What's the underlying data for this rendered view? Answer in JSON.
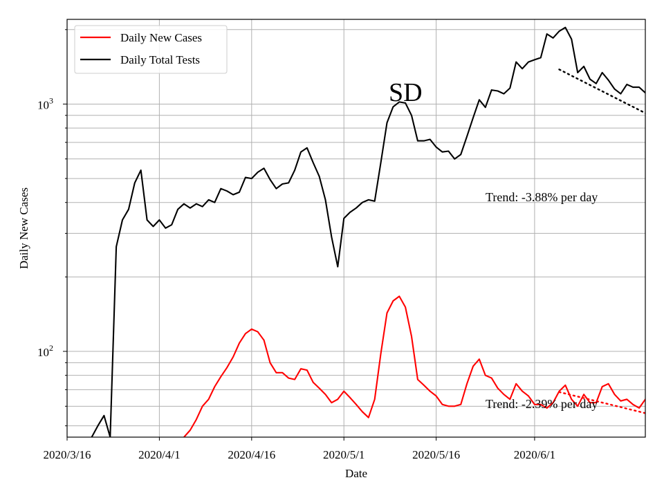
{
  "chart_data": {
    "type": "line",
    "yscale": "log",
    "ylabel": "Daily New Cases",
    "xlabel": "Date",
    "x_start": "2020/3/16",
    "xlim_days": [
      0,
      94
    ],
    "ylim": [
      45,
      2200
    ],
    "x_ticks": [
      {
        "day": 0,
        "label": "2020/3/16"
      },
      {
        "day": 15,
        "label": "2020/4/1"
      },
      {
        "day": 30,
        "label": "2020/4/16"
      },
      {
        "day": 45,
        "label": "2020/5/1"
      },
      {
        "day": 60,
        "label": "2020/5/16"
      },
      {
        "day": 76,
        "label": "2020/6/1"
      }
    ],
    "y_ticks": [
      {
        "value": 100,
        "base": "10",
        "exp": "2"
      },
      {
        "value": 1000,
        "base": "10",
        "exp": "3"
      }
    ],
    "minor_y_ticks": [
      50,
      60,
      70,
      80,
      90,
      200,
      300,
      400,
      500,
      600,
      700,
      800,
      900,
      2000
    ],
    "legend": {
      "position": "top-left",
      "entries": [
        "Daily New Cases",
        "Daily Total Tests"
      ]
    },
    "series": [
      {
        "name": "Daily New Cases",
        "color": "#ff0000",
        "style": "solid",
        "points": [
          [
            19,
            45
          ],
          [
            20,
            48
          ],
          [
            21,
            53
          ],
          [
            22,
            60
          ],
          [
            23,
            64
          ],
          [
            24,
            72
          ],
          [
            25,
            79
          ],
          [
            26,
            86
          ],
          [
            27,
            95
          ],
          [
            28,
            108
          ],
          [
            29,
            118
          ],
          [
            30,
            123
          ],
          [
            31,
            120
          ],
          [
            32,
            111
          ],
          [
            33,
            90
          ],
          [
            34,
            82
          ],
          [
            35,
            82
          ],
          [
            36,
            78
          ],
          [
            37,
            77
          ],
          [
            38,
            85
          ],
          [
            39,
            84
          ],
          [
            40,
            75
          ],
          [
            41,
            71
          ],
          [
            42,
            67
          ],
          [
            43,
            62
          ],
          [
            44,
            64
          ],
          [
            45,
            69
          ],
          [
            46,
            65
          ],
          [
            47,
            61
          ],
          [
            48,
            57
          ],
          [
            49,
            54
          ],
          [
            50,
            64
          ],
          [
            51,
            98
          ],
          [
            52,
            143
          ],
          [
            53,
            160
          ],
          [
            54,
            167
          ],
          [
            55,
            151
          ],
          [
            56,
            115
          ],
          [
            57,
            77
          ],
          [
            58,
            73
          ],
          [
            59,
            69
          ],
          [
            60,
            66
          ],
          [
            61,
            61
          ],
          [
            62,
            60
          ],
          [
            63,
            60
          ],
          [
            64,
            61
          ],
          [
            65,
            74
          ],
          [
            66,
            87
          ],
          [
            67,
            93
          ],
          [
            68,
            80
          ],
          [
            69,
            78
          ],
          [
            70,
            71
          ],
          [
            71,
            67
          ],
          [
            72,
            64
          ],
          [
            73,
            74
          ],
          [
            74,
            69
          ],
          [
            75,
            66
          ],
          [
            76,
            61
          ],
          [
            77,
            61
          ],
          [
            78,
            59
          ],
          [
            79,
            62
          ],
          [
            80,
            69
          ],
          [
            81,
            73
          ],
          [
            82,
            64
          ],
          [
            83,
            60
          ],
          [
            84,
            67
          ],
          [
            85,
            62
          ],
          [
            86,
            62
          ],
          [
            87,
            72
          ],
          [
            88,
            74
          ],
          [
            89,
            67
          ],
          [
            90,
            63
          ],
          [
            91,
            64
          ],
          [
            92,
            61
          ],
          [
            93,
            59
          ],
          [
            94,
            64
          ],
          [
            95,
            68
          ],
          [
            96,
            58
          ],
          [
            97,
            54
          ],
          [
            98,
            56
          ],
          [
            99,
            55
          ],
          [
            100,
            51
          ],
          [
            101,
            54
          ]
        ]
      },
      {
        "name": "Daily Total Tests",
        "color": "#000000",
        "style": "solid",
        "points": [
          [
            4,
            45
          ],
          [
            5,
            50
          ],
          [
            6,
            55
          ],
          [
            7,
            45
          ],
          [
            8,
            265
          ],
          [
            9,
            340
          ],
          [
            10,
            375
          ],
          [
            11,
            480
          ],
          [
            12,
            540
          ],
          [
            13,
            340
          ],
          [
            14,
            320
          ],
          [
            15,
            340
          ],
          [
            16,
            315
          ],
          [
            17,
            325
          ],
          [
            18,
            375
          ],
          [
            19,
            395
          ],
          [
            20,
            380
          ],
          [
            21,
            395
          ],
          [
            22,
            385
          ],
          [
            23,
            410
          ],
          [
            24,
            400
          ],
          [
            25,
            455
          ],
          [
            26,
            445
          ],
          [
            27,
            430
          ],
          [
            28,
            440
          ],
          [
            29,
            505
          ],
          [
            30,
            500
          ],
          [
            31,
            530
          ],
          [
            32,
            550
          ],
          [
            33,
            495
          ],
          [
            34,
            455
          ],
          [
            35,
            475
          ],
          [
            36,
            480
          ],
          [
            37,
            540
          ],
          [
            38,
            640
          ],
          [
            39,
            665
          ],
          [
            40,
            580
          ],
          [
            41,
            510
          ],
          [
            42,
            410
          ],
          [
            43,
            290
          ],
          [
            44,
            220
          ],
          [
            45,
            345
          ],
          [
            46,
            365
          ],
          [
            47,
            380
          ],
          [
            48,
            400
          ],
          [
            49,
            410
          ],
          [
            50,
            405
          ],
          [
            51,
            580
          ],
          [
            52,
            840
          ],
          [
            53,
            975
          ],
          [
            54,
            1020
          ],
          [
            55,
            1010
          ],
          [
            56,
            900
          ],
          [
            57,
            710
          ],
          [
            58,
            710
          ],
          [
            59,
            720
          ],
          [
            60,
            670
          ],
          [
            61,
            640
          ],
          [
            62,
            645
          ],
          [
            63,
            600
          ],
          [
            64,
            625
          ],
          [
            65,
            740
          ],
          [
            66,
            880
          ],
          [
            67,
            1040
          ],
          [
            68,
            970
          ],
          [
            69,
            1140
          ],
          [
            70,
            1130
          ],
          [
            71,
            1100
          ],
          [
            72,
            1160
          ],
          [
            73,
            1480
          ],
          [
            74,
            1390
          ],
          [
            75,
            1480
          ],
          [
            76,
            1510
          ],
          [
            77,
            1540
          ],
          [
            78,
            1920
          ],
          [
            79,
            1850
          ],
          [
            80,
            1970
          ],
          [
            81,
            2040
          ],
          [
            82,
            1830
          ],
          [
            83,
            1340
          ],
          [
            84,
            1420
          ],
          [
            85,
            1260
          ],
          [
            86,
            1210
          ],
          [
            87,
            1340
          ],
          [
            88,
            1250
          ],
          [
            89,
            1150
          ],
          [
            90,
            1100
          ],
          [
            91,
            1200
          ],
          [
            92,
            1170
          ],
          [
            93,
            1170
          ],
          [
            94,
            1110
          ],
          [
            95,
            1170
          ],
          [
            96,
            870
          ],
          [
            97,
            720
          ],
          [
            98,
            770
          ],
          [
            99,
            780
          ],
          [
            100,
            710
          ],
          [
            101,
            840
          ]
        ]
      },
      {
        "name": "Cases trend",
        "color": "#ff0000",
        "style": "dotted",
        "points": [
          [
            80,
            68.5
          ],
          [
            101,
            51
          ]
        ]
      },
      {
        "name": "Tests trend",
        "color": "#000000",
        "style": "dotted",
        "points": [
          [
            80,
            1380
          ],
          [
            101,
            750
          ]
        ]
      }
    ],
    "annotations": [
      {
        "text": "SD",
        "style": "large"
      },
      {
        "text": "Trend: -3.88% per day",
        "style": "normal"
      },
      {
        "text": "Trend: -2.39% per day",
        "style": "normal"
      }
    ]
  }
}
